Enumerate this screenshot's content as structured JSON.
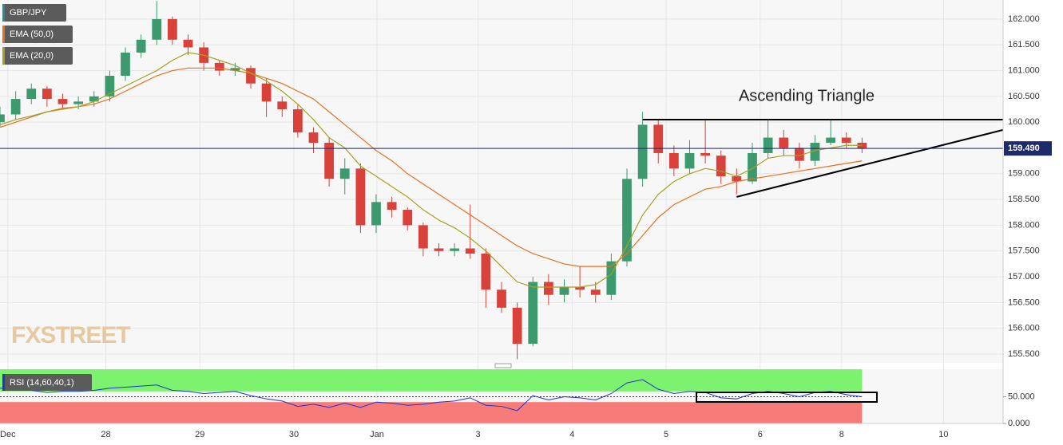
{
  "chart_data": [
    {
      "type": "candlestick",
      "name": "GBP/JPY",
      "up_color": "#3c9a6e",
      "down_color": "#d9413b",
      "name_color": "#2a8c8c",
      "x": [
        0,
        1,
        2,
        3,
        4,
        5,
        6,
        7,
        8,
        9,
        10,
        11,
        12,
        13,
        14,
        15,
        16,
        17,
        18,
        19,
        20,
        21,
        22,
        23,
        24,
        25,
        26,
        27,
        28,
        29,
        30,
        31,
        32,
        33,
        34,
        35,
        36,
        37,
        38,
        39,
        40,
        41,
        42,
        43,
        44,
        45,
        46,
        47,
        48,
        49,
        50,
        51,
        52,
        53,
        54,
        55
      ],
      "open": [
        160.0,
        160.15,
        160.45,
        160.65,
        160.45,
        160.35,
        160.4,
        160.5,
        160.9,
        161.35,
        161.6,
        162.0,
        161.6,
        161.45,
        161.15,
        161.0,
        161.05,
        160.75,
        160.4,
        160.25,
        159.8,
        159.6,
        158.9,
        159.1,
        158.0,
        158.45,
        158.3,
        158.0,
        157.55,
        157.5,
        157.55,
        157.45,
        156.75,
        156.4,
        155.7,
        156.9,
        156.65,
        156.8,
        156.75,
        156.65,
        157.3,
        158.9,
        159.95,
        159.4,
        159.1,
        159.4,
        159.35,
        158.95,
        158.85,
        159.4,
        159.7,
        159.5,
        159.25,
        159.6,
        159.7,
        159.6
      ],
      "high": [
        160.3,
        160.6,
        160.75,
        160.7,
        160.55,
        160.5,
        160.6,
        161.0,
        161.45,
        161.7,
        162.35,
        162.05,
        161.7,
        161.55,
        161.2,
        161.15,
        161.1,
        160.85,
        160.5,
        160.35,
        159.9,
        159.7,
        159.3,
        159.2,
        158.6,
        158.55,
        158.35,
        158.05,
        157.65,
        157.65,
        158.4,
        157.55,
        156.9,
        156.5,
        157.0,
        157.05,
        156.95,
        157.2,
        156.9,
        157.45,
        159.1,
        160.2,
        160.05,
        159.55,
        159.65,
        160.05,
        159.45,
        159.1,
        159.6,
        160.05,
        159.85,
        159.6,
        159.75,
        160.05,
        159.8,
        159.7
      ],
      "low": [
        159.9,
        160.05,
        160.35,
        160.3,
        160.25,
        160.25,
        160.3,
        160.4,
        160.8,
        161.25,
        161.5,
        161.5,
        161.3,
        161.0,
        160.9,
        160.9,
        160.65,
        160.1,
        160.1,
        159.7,
        159.4,
        158.75,
        158.6,
        157.85,
        157.85,
        158.15,
        157.9,
        157.4,
        157.4,
        157.4,
        157.35,
        156.4,
        156.3,
        155.4,
        155.65,
        156.45,
        156.5,
        156.6,
        156.5,
        156.55,
        157.2,
        158.75,
        159.2,
        158.95,
        159.0,
        159.2,
        158.8,
        158.6,
        158.8,
        159.3,
        159.35,
        159.1,
        159.15,
        159.55,
        159.5,
        159.4
      ],
      "close": [
        160.15,
        160.45,
        160.65,
        160.45,
        160.35,
        160.4,
        160.5,
        160.9,
        161.35,
        161.6,
        162.0,
        161.6,
        161.45,
        161.15,
        161.0,
        161.05,
        160.75,
        160.4,
        160.25,
        159.8,
        159.6,
        158.9,
        159.1,
        158.0,
        158.45,
        158.3,
        158.0,
        157.55,
        157.5,
        157.55,
        157.45,
        156.75,
        156.4,
        155.7,
        156.9,
        156.65,
        156.8,
        156.75,
        156.65,
        157.3,
        158.9,
        159.95,
        159.4,
        159.1,
        159.4,
        159.35,
        158.95,
        158.85,
        159.4,
        159.7,
        159.5,
        159.25,
        159.6,
        159.7,
        159.6,
        159.49
      ],
      "series": [
        {
          "name": "EMA (50,0)",
          "color": "#e8701f",
          "values": [
            159.9,
            160.0,
            160.1,
            160.2,
            160.27,
            160.3,
            160.35,
            160.45,
            160.6,
            160.75,
            160.9,
            161.0,
            161.05,
            161.05,
            161.05,
            161.0,
            160.95,
            160.85,
            160.75,
            160.6,
            160.45,
            160.2,
            159.95,
            159.7,
            159.45,
            159.25,
            159.0,
            158.8,
            158.6,
            158.4,
            158.2,
            158.0,
            157.8,
            157.6,
            157.45,
            157.35,
            157.25,
            157.2,
            157.2,
            157.2,
            157.45,
            157.8,
            158.15,
            158.4,
            158.55,
            158.7,
            158.75,
            158.85,
            158.9,
            158.95,
            159.0,
            159.05,
            159.1,
            159.15,
            159.2,
            159.25
          ]
        },
        {
          "name": "EMA (20,0)",
          "color": "#a8a020",
          "values": [
            159.95,
            160.05,
            160.12,
            160.2,
            160.25,
            160.3,
            160.4,
            160.55,
            160.7,
            160.85,
            161.0,
            161.2,
            161.35,
            161.3,
            161.2,
            161.1,
            160.95,
            160.8,
            160.6,
            160.35,
            160.05,
            159.7,
            159.5,
            159.15,
            158.95,
            158.75,
            158.55,
            158.3,
            158.1,
            157.95,
            157.75,
            157.5,
            157.2,
            156.9,
            156.8,
            156.8,
            156.8,
            156.8,
            156.85,
            157.05,
            157.6,
            158.2,
            158.6,
            158.85,
            159.0,
            159.1,
            159.05,
            158.95,
            159.1,
            159.3,
            159.35,
            159.35,
            159.45,
            159.5,
            159.55,
            159.55
          ]
        }
      ],
      "xlim": [
        0,
        64
      ],
      "ylim": [
        155.33,
        162.37
      ],
      "yticks": [
        {
          "value": 155.5,
          "label": "155.500"
        },
        {
          "value": 156.0,
          "label": "156.000"
        },
        {
          "value": 156.5,
          "label": "156.500"
        },
        {
          "value": 157.0,
          "label": "157.000"
        },
        {
          "value": 157.5,
          "label": "157.500"
        },
        {
          "value": 158.0,
          "label": "158.000"
        },
        {
          "value": 158.5,
          "label": "158.500"
        },
        {
          "value": 159.0,
          "label": "159.000"
        },
        {
          "value": 159.5,
          "label": "159.500"
        },
        {
          "value": 160.0,
          "label": "160.000"
        },
        {
          "value": 160.5,
          "label": "160.500"
        },
        {
          "value": 161.0,
          "label": "161.000"
        },
        {
          "value": 161.5,
          "label": "161.500"
        },
        {
          "value": 162.0,
          "label": "162.000"
        }
      ],
      "xticks": [
        {
          "value": 0.5,
          "label": "Dec"
        },
        {
          "value": 6.75,
          "label": "28"
        },
        {
          "value": 12.75,
          "label": "29"
        },
        {
          "value": 18.75,
          "label": "30"
        },
        {
          "value": 24.05,
          "label": "Jan"
        },
        {
          "value": 30.5,
          "label": "3"
        },
        {
          "value": 36.5,
          "label": "4"
        },
        {
          "value": 42.5,
          "label": "5"
        },
        {
          "value": 48.5,
          "label": "6"
        },
        {
          "value": 53.7,
          "label": "8"
        },
        {
          "value": 60.2,
          "label": "10"
        }
      ],
      "current_price": {
        "value": 159.49,
        "label": "159.490"
      },
      "current_price_color": "#1f2a6b",
      "annotation": "Ascending Triangle",
      "trend_lines": [
        {
          "x": [
            41,
            64
          ],
          "y": [
            160.05,
            160.05
          ]
        },
        {
          "x": [
            47,
            64
          ],
          "y": [
            158.55,
            159.85
          ]
        }
      ],
      "watermark": "FXSTREET",
      "grid": true
    },
    {
      "type": "line",
      "title": "RSI (14,60,40,1)",
      "color": "#2233cc",
      "x": [
        0,
        1,
        2,
        3,
        4,
        5,
        6,
        7,
        8,
        9,
        10,
        11,
        12,
        13,
        14,
        15,
        16,
        17,
        18,
        19,
        20,
        21,
        22,
        23,
        24,
        25,
        26,
        27,
        28,
        29,
        30,
        31,
        32,
        33,
        34,
        35,
        36,
        37,
        38,
        39,
        40,
        41,
        42,
        43,
        44,
        45,
        46,
        47,
        48,
        49,
        50,
        51,
        52,
        53,
        54,
        55
      ],
      "values": [
        66,
        64,
        62,
        58,
        60,
        60,
        62,
        66,
        68,
        70,
        72,
        62,
        60,
        56,
        58,
        60,
        52,
        46,
        42,
        32,
        36,
        30,
        38,
        30,
        40,
        38,
        34,
        36,
        40,
        42,
        48,
        34,
        32,
        24,
        52,
        44,
        50,
        48,
        44,
        56,
        76,
        82,
        64,
        56,
        60,
        58,
        48,
        46,
        56,
        60,
        56,
        50,
        58,
        60,
        54,
        50
      ],
      "upper": 60,
      "lower": 40,
      "upper_color": "#7df26e",
      "lower_color": "#f77b78",
      "ylim": [
        0,
        101.5
      ],
      "yticks": [
        {
          "value": 0,
          "label": "0.000"
        },
        {
          "value": 50,
          "label": "50.000"
        }
      ]
    }
  ]
}
